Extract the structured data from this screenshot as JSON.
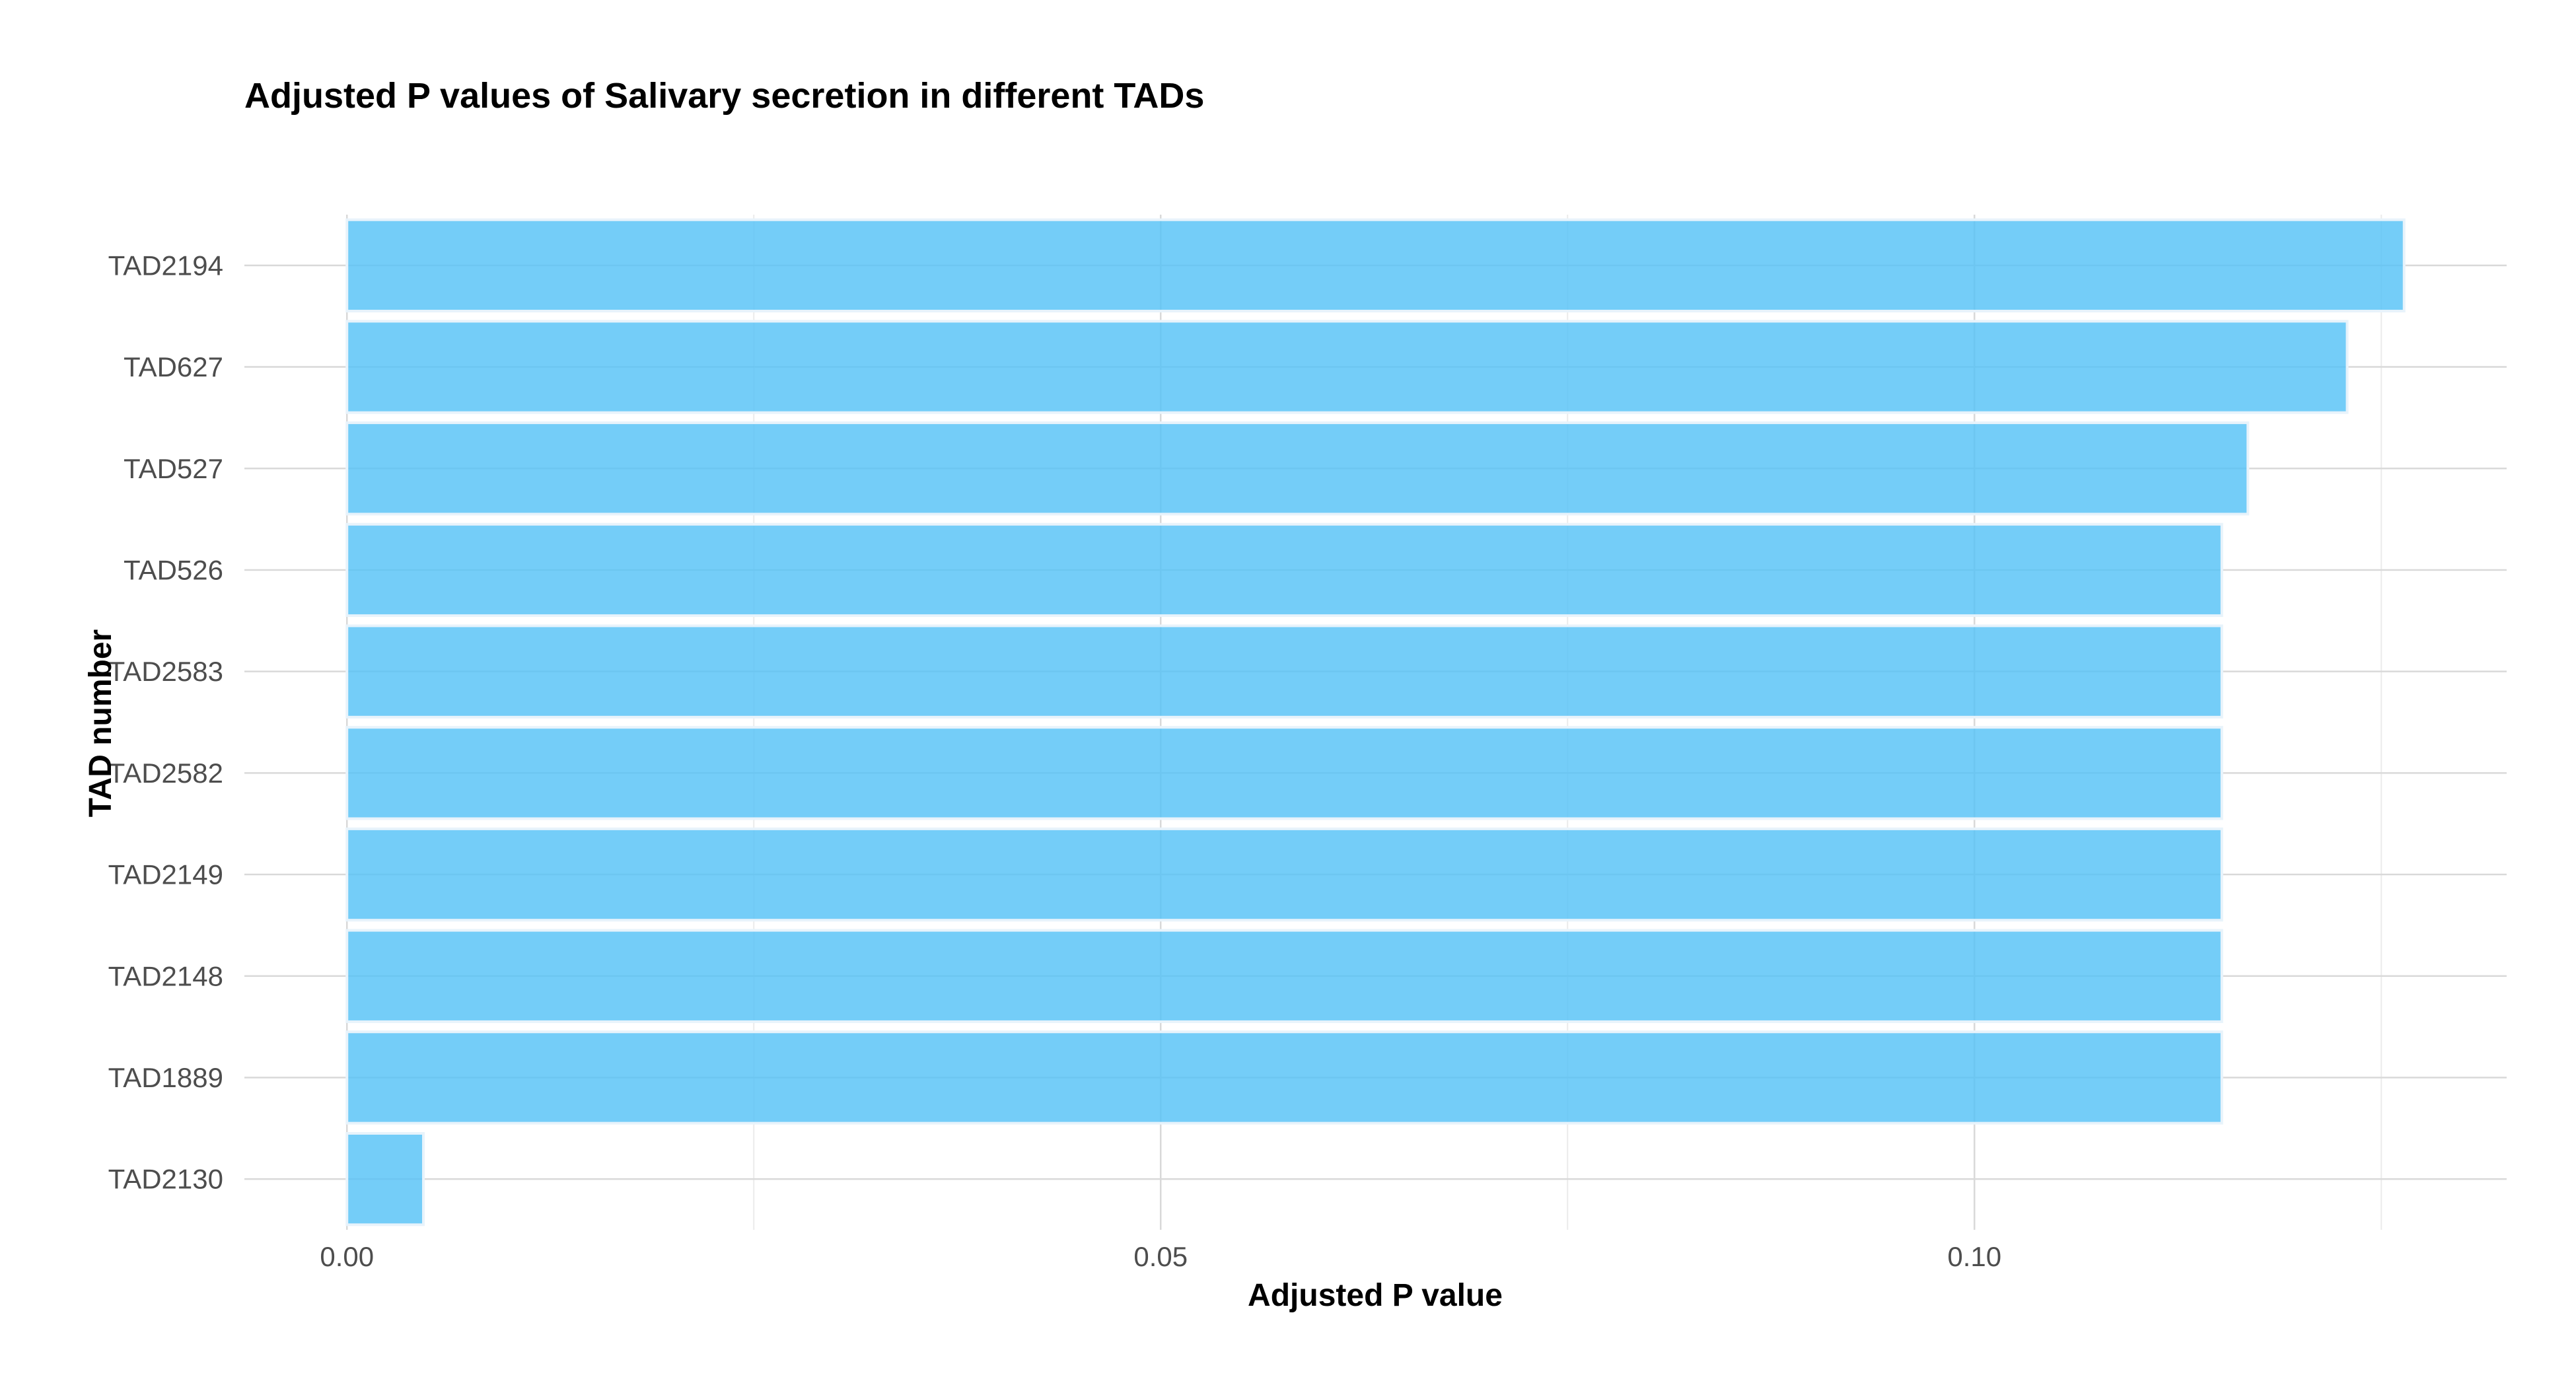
{
  "chart_data": {
    "type": "bar",
    "orientation": "horizontal",
    "title": "Adjusted P values of Salivary secretion in different TADs",
    "xlabel": "Adjusted P value",
    "ylabel": "TAD number",
    "categories": [
      "TAD2194",
      "TAD627",
      "TAD527",
      "TAD526",
      "TAD2583",
      "TAD2582",
      "TAD2149",
      "TAD2148",
      "TAD1889",
      "TAD2130"
    ],
    "values": [
      0.1264,
      0.1229,
      0.1168,
      0.1152,
      0.1152,
      0.1152,
      0.1152,
      0.1152,
      0.1152,
      0.0047
    ],
    "xlim": [
      -0.0063,
      0.1327
    ],
    "xticks": [
      0.0,
      0.05,
      0.1
    ],
    "xtick_labels": [
      "0.00",
      "0.05",
      "0.10"
    ],
    "grid": true,
    "bar_color": "#56c2f7",
    "bar_outline_color": "#e8f3fb"
  }
}
